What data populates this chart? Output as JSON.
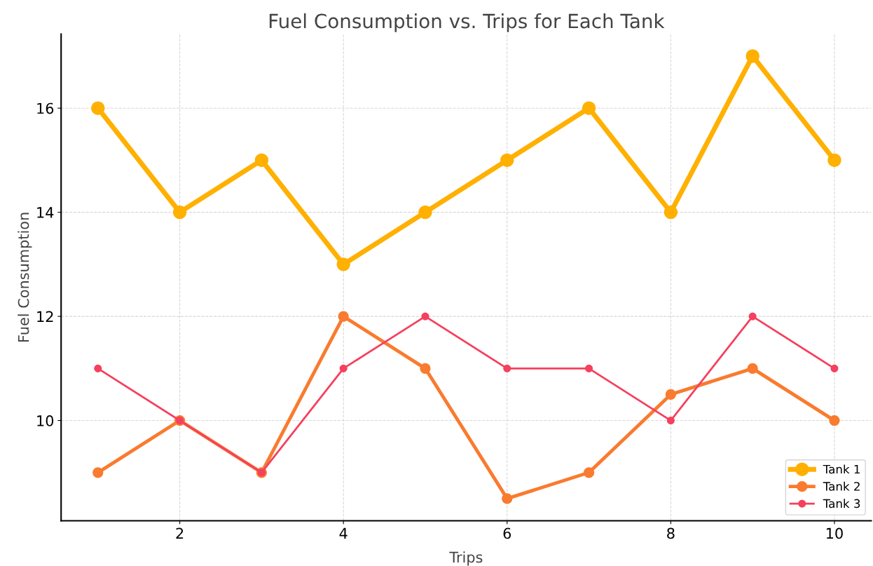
{
  "chart_data": {
    "type": "line",
    "title": "Fuel Consumption vs. Trips for Each Tank",
    "xlabel": "Trips",
    "ylabel": "Fuel Consumption",
    "x": [
      1,
      2,
      3,
      4,
      5,
      6,
      7,
      8,
      9,
      10
    ],
    "series": [
      {
        "name": "Tank 1",
        "color": "#ffb000",
        "values": [
          16,
          14,
          15,
          13,
          14,
          15,
          16,
          14,
          17,
          15
        ]
      },
      {
        "name": "Tank 2",
        "color": "#f97b2f",
        "values": [
          9,
          10,
          9,
          12,
          11,
          8.5,
          9,
          10.5,
          11,
          10
        ]
      },
      {
        "name": "Tank 3",
        "color": "#f5405e",
        "values": [
          11,
          10,
          9,
          11,
          12,
          11,
          11,
          10,
          12,
          11
        ]
      }
    ],
    "xlim": [
      0.55,
      10.45
    ],
    "ylim": [
      8.075,
      17.425
    ],
    "xticks": [
      2,
      4,
      6,
      8,
      10
    ],
    "yticks": [
      10,
      12,
      14,
      16
    ],
    "grid": true,
    "legend": "lower right",
    "marker": "circle",
    "line_style": "solid"
  }
}
